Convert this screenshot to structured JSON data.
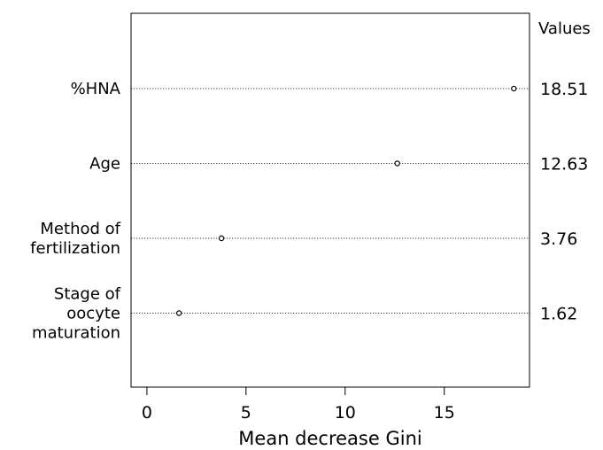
{
  "chart_data": {
    "type": "scatter",
    "subtype": "dot-plot",
    "xlabel": "Mean decrease Gini",
    "x_ticks": [
      0,
      5,
      10,
      15
    ],
    "xlim": [
      -0.8,
      19.3
    ],
    "grid": false,
    "values_header": "Values",
    "series": [
      {
        "points": [
          {
            "label": [
              "%HNA"
            ],
            "value": 18.51,
            "value_label": "18.51"
          },
          {
            "label": [
              "Age"
            ],
            "value": 12.63,
            "value_label": "12.63"
          },
          {
            "label": [
              "Method of",
              "fertilization"
            ],
            "value": 3.76,
            "value_label": "3.76"
          },
          {
            "label": [
              "Stage of",
              "oocyte",
              "maturation"
            ],
            "value": 1.62,
            "value_label": "1.62"
          }
        ]
      }
    ]
  }
}
